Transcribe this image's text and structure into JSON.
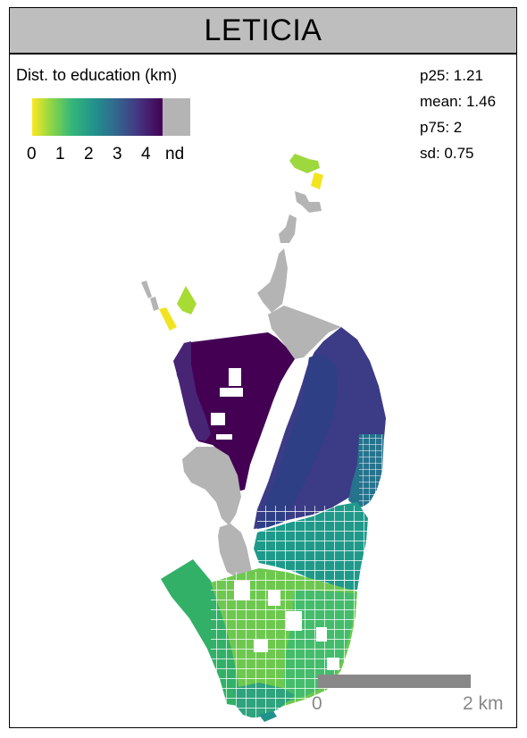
{
  "title": "LETICIA",
  "legend": {
    "title": "Dist. to education (km)",
    "ticks": [
      "0",
      "1",
      "2",
      "3",
      "4",
      "nd"
    ],
    "colors": [
      "#fde725",
      "#90d743",
      "#35b779",
      "#21918c",
      "#31688e",
      "#443983",
      "#440154"
    ],
    "nd_color": "#b4b4b4"
  },
  "stats": {
    "p25": "p25: 1.21",
    "mean": "mean: 1.46",
    "p75": "p75: 2",
    "sd": "sd: 0.75"
  },
  "scale_bar": {
    "start_label": "0",
    "end_label": "2 km"
  }
}
